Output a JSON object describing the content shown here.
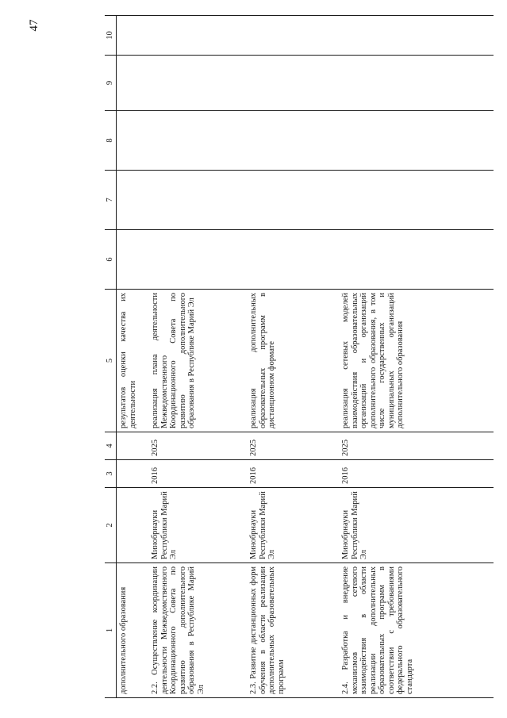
{
  "page_number": "47",
  "table": {
    "headers": [
      "1",
      "2",
      "3",
      "4",
      "5",
      "6",
      "7",
      "8",
      "9",
      "10"
    ],
    "rows": [
      {
        "c1": "дополнительного образования",
        "c2": "",
        "c3": "",
        "c4": "",
        "c5": "результатов оценки качества их деятельности"
      },
      {
        "c1": "2.2. Осуществление координации деятельности Межведомственного Координационного Совета по развитию дополнительного образования в Республике Марий Эл",
        "c2": "Минобрнауки Республики Марий Эл",
        "c3": "2016",
        "c4": "2025",
        "c5": "реализация плана деятельности Межведомственного Координационного Совета по развитию дополнительного образования в Республике Марий Эл"
      },
      {
        "c1": "2.3. Развитие дистанционных форм обучения в области реализации дополнительных образовательных программ",
        "c2": "Минобрнауки Республики Марий Эл",
        "c3": "2016",
        "c4": "2025",
        "c5": "реализация дополнительных образовательных программ в дистанционном формате"
      },
      {
        "c1": "2.4. Разработка и внедрение механизмов сетевого взаимодействия в области реализации дополнительных образовательных программ в соответствии с требованиями федерального образовательного стандарта",
        "c2": "Минобрнауки Республики Марий Эл",
        "c3": "2016",
        "c4": "2025",
        "c5": "реализация сетевых моделей взаимодействия образовательных организаций и организаций дополнительного образования, в том числе государственных и муниципальных организаций дополнительного образования"
      }
    ]
  }
}
